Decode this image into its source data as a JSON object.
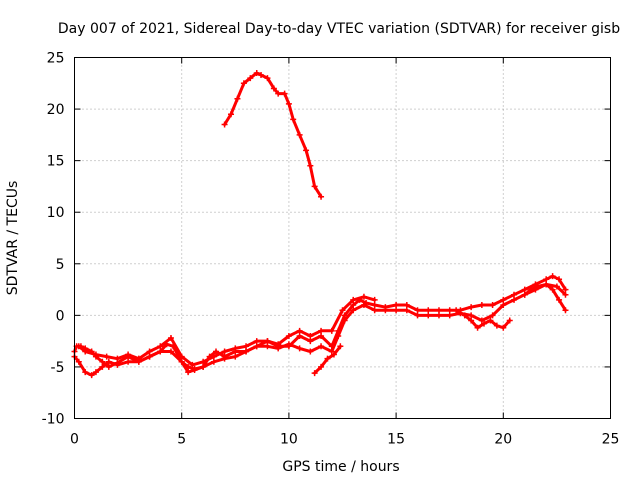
{
  "chart_data": {
    "type": "line",
    "title": "Day 007 of 2021, Sidereal Day-to-day VTEC variation (SDTVAR) for receiver gisb",
    "xlabel": "GPS time / hours",
    "ylabel": "SDTVAR / TECUs",
    "xlim": [
      0,
      25
    ],
    "ylim": [
      -10,
      25
    ],
    "grid": true,
    "xticks": [
      0,
      5,
      10,
      15,
      20,
      25
    ],
    "yticks": [
      -10,
      -5,
      0,
      5,
      10,
      15,
      20,
      25
    ],
    "xtick_labels": [
      "0",
      "5",
      "10",
      "15",
      "20",
      "25"
    ],
    "ytick_labels": [
      "-10",
      "-5",
      "0",
      "5",
      "10",
      "15",
      "20",
      "25"
    ],
    "color": "#ff0000",
    "series": [
      {
        "name": "main-track-a",
        "x": [
          0,
          0.1,
          0.3,
          0.5,
          0.8,
          1.0,
          1.3,
          1.6,
          2.0,
          2.5,
          3.0,
          3.5,
          4.0,
          4.3,
          4.6,
          5.0,
          5.3,
          5.6,
          6.0,
          6.3,
          6.6,
          7.0,
          7.5,
          8.0,
          8.5,
          9.0,
          9.5,
          10.0,
          10.5,
          11.0,
          11.5,
          12.0,
          12.3,
          12.6,
          13.0,
          13.3,
          13.6,
          14.0,
          14.5,
          15.0,
          15.5,
          16.0,
          16.5,
          17.0,
          17.5,
          18.0,
          18.5,
          19.0,
          19.5,
          20.0,
          20.5,
          21.0,
          21.5,
          22.0,
          22.3,
          22.6,
          22.9
        ],
        "y": [
          -3.5,
          -3.0,
          -3.0,
          -3.2,
          -3.5,
          -4.0,
          -4.5,
          -5.0,
          -4.6,
          -4.0,
          -4.5,
          -4.0,
          -3.5,
          -2.8,
          -3.0,
          -4.5,
          -5.0,
          -5.2,
          -5.0,
          -4.0,
          -3.5,
          -4.0,
          -3.5,
          -3.5,
          -3.0,
          -2.5,
          -3.0,
          -3.0,
          -2.0,
          -2.5,
          -2.0,
          -3.0,
          -1.5,
          0.0,
          1.0,
          1.5,
          1.2,
          1.0,
          0.8,
          1.0,
          1.0,
          0.5,
          0.5,
          0.5,
          0.5,
          0.5,
          0.8,
          1.0,
          1.0,
          1.5,
          2.0,
          2.5,
          3.0,
          3.5,
          3.8,
          3.5,
          2.5
        ]
      },
      {
        "name": "main-track-b",
        "x": [
          0,
          0.2,
          0.5,
          0.8,
          1.0,
          1.3,
          1.6,
          2.0,
          2.5,
          3.0,
          3.5,
          4.0,
          4.5,
          5.0,
          5.3,
          5.6,
          6.0,
          6.5,
          7.0,
          7.5,
          8.0,
          8.5,
          9.0,
          9.5,
          10.0,
          10.5,
          11.0,
          11.5,
          12.0,
          12.3,
          12.6,
          13.0,
          13.5,
          14.0,
          14.5,
          15.0,
          15.5,
          16.0,
          16.5,
          17.0,
          17.5,
          18.0,
          18.5,
          19.0,
          19.5,
          20.0,
          20.5,
          21.0,
          21.5,
          22.0,
          22.5,
          22.9
        ],
        "y": [
          -4.0,
          -4.5,
          -5.5,
          -5.8,
          -5.5,
          -5.0,
          -4.5,
          -4.8,
          -4.5,
          -4.5,
          -4.0,
          -3.5,
          -3.5,
          -4.5,
          -5.5,
          -5.3,
          -5.0,
          -4.5,
          -4.2,
          -4.0,
          -3.5,
          -3.0,
          -3.0,
          -3.2,
          -2.8,
          -3.2,
          -3.5,
          -3.0,
          -3.5,
          -2.0,
          -0.5,
          0.5,
          1.0,
          0.5,
          0.5,
          0.5,
          0.5,
          0.0,
          0.0,
          0.0,
          0.0,
          0.2,
          0.0,
          -0.5,
          0.0,
          1.0,
          1.5,
          2.0,
          2.5,
          3.0,
          2.8,
          2.0
        ]
      },
      {
        "name": "main-track-c",
        "x": [
          0.2,
          0.5,
          1.0,
          1.5,
          2.0,
          2.5,
          3.0,
          3.5,
          4.0,
          4.5,
          5.0,
          5.5,
          6.0,
          6.5,
          7.0,
          7.5,
          8.0,
          8.5,
          9.0,
          9.5,
          10.0,
          10.5,
          11.0,
          11.5,
          12.0,
          12.5,
          13.0,
          13.5,
          14.0
        ],
        "y": [
          -3.0,
          -3.5,
          -3.8,
          -4.0,
          -4.2,
          -3.8,
          -4.2,
          -3.5,
          -3.0,
          -2.2,
          -4.0,
          -4.8,
          -4.5,
          -4.0,
          -3.5,
          -3.2,
          -3.0,
          -2.5,
          -2.5,
          -2.8,
          -2.0,
          -1.5,
          -2.0,
          -1.5,
          -1.5,
          0.5,
          1.5,
          1.8,
          1.5
        ]
      },
      {
        "name": "dip-track-19h",
        "x": [
          17.8,
          18.2,
          18.5,
          18.8,
          19.1,
          19.4,
          19.7,
          20.0,
          20.3
        ],
        "y": [
          0.5,
          0.0,
          -0.5,
          -1.2,
          -0.8,
          -0.5,
          -1.0,
          -1.2,
          -0.5
        ]
      },
      {
        "name": "late-track-22h",
        "x": [
          21.0,
          21.3,
          21.6,
          22.0,
          22.3,
          22.6,
          22.9
        ],
        "y": [
          2.0,
          2.5,
          2.8,
          3.0,
          2.5,
          1.5,
          0.5
        ]
      },
      {
        "name": "drop-track-11h",
        "x": [
          11.2,
          11.5,
          11.8,
          12.1,
          12.4
        ],
        "y": [
          -5.6,
          -5.0,
          -4.2,
          -3.8,
          -3.0
        ]
      },
      {
        "name": "upper-arc",
        "x": [
          7.0,
          7.3,
          7.6,
          7.9,
          8.2,
          8.5,
          8.7,
          9.0,
          9.3,
          9.5,
          9.8,
          10.0,
          10.2,
          10.5,
          10.8,
          11.0,
          11.2,
          11.5
        ],
        "y": [
          18.5,
          19.5,
          21.0,
          22.5,
          23.0,
          23.5,
          23.3,
          23.0,
          22.0,
          21.5,
          21.5,
          20.5,
          19.0,
          17.5,
          16.0,
          14.5,
          12.5,
          11.5
        ]
      }
    ]
  }
}
